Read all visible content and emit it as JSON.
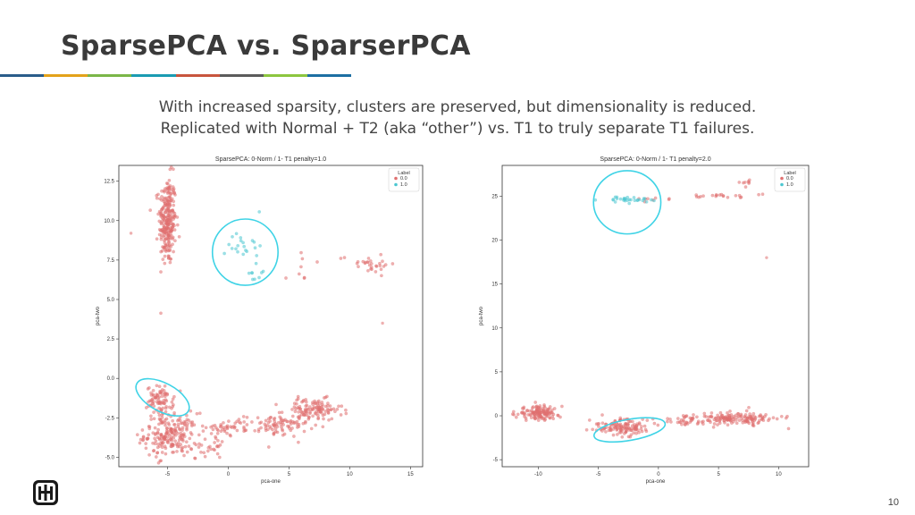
{
  "slide": {
    "title": "SparsePCA vs. SparserPCA",
    "subtitle_lines": [
      "With increased sparsity, clusters are preserved, but dimensionality is reduced.",
      "Replicated with Normal + T2 (aka “other”) vs. T1 to truly separate T1 failures."
    ],
    "page_number": "10",
    "logo": "sandia-thunderbird-logo",
    "bar_colors": [
      "#2a5c8a",
      "#e3a21a",
      "#7ab648",
      "#1a9bb2",
      "#c8553d",
      "#5b5b5b",
      "#8cc63f",
      "#1d6fa3"
    ]
  },
  "chart_data": [
    {
      "type": "scatter",
      "title": "SparsePCA: 0-Norm / 1- T1    penalty=1.0",
      "xlabel": "pca-one",
      "ylabel": "pca-two",
      "xlim": [
        -9,
        16
      ],
      "ylim": [
        -5.6,
        13.5
      ],
      "xticks": [
        -5,
        0,
        5,
        10,
        15
      ],
      "yticks": [
        -5.0,
        -2.5,
        0.0,
        2.5,
        5.0,
        7.5,
        10.0,
        12.5
      ],
      "grid": false,
      "legend": {
        "title": "Label",
        "position": "top-right",
        "entries": [
          {
            "label": "0.0",
            "color": "#e07070"
          },
          {
            "label": "1.0",
            "color": "#4cc7d1"
          }
        ]
      },
      "series": [
        {
          "name": "0.0",
          "color": "#e07070",
          "clusters": [
            {
              "cx": -5,
              "cy": 10,
              "sx": 0.35,
              "sy": 1.4,
              "n": 260
            },
            {
              "cx": -4.7,
              "cy": -3.6,
              "sx": 1.1,
              "sy": 0.7,
              "n": 220
            },
            {
              "cx": -5.6,
              "cy": -1.4,
              "sx": 0.55,
              "sy": 0.45,
              "n": 80
            },
            {
              "cx": -1.5,
              "cy": -4.3,
              "sx": 0.6,
              "sy": 0.4,
              "n": 25
            },
            {
              "cx": 0,
              "cy": -3.1,
              "sx": 0.9,
              "sy": 0.25,
              "n": 40
            },
            {
              "cx": 4,
              "cy": -3.0,
              "sx": 1.3,
              "sy": 0.35,
              "n": 90
            },
            {
              "cx": 7,
              "cy": -2.0,
              "sx": 1.2,
              "sy": 0.35,
              "n": 120
            },
            {
              "cx": 11.5,
              "cy": 7.3,
              "sx": 1.2,
              "sy": 0.3,
              "n": 30
            },
            {
              "cx": 6,
              "cy": 7.0,
              "sx": 0.6,
              "sy": 0.6,
              "n": 8
            }
          ],
          "points": [
            {
              "x": -8,
              "y": 9.2
            },
            {
              "x": 12.7,
              "y": 3.5
            }
          ]
        },
        {
          "name": "1.0",
          "color": "#4cc7d1",
          "clusters": [
            {
              "cx": 1.4,
              "cy": 8.5,
              "sx": 0.7,
              "sy": 0.6,
              "n": 22
            },
            {
              "cx": 2.1,
              "cy": 6.7,
              "sx": 0.35,
              "sy": 0.3,
              "n": 8
            }
          ],
          "points": []
        }
      ],
      "annotations": [
        {
          "shape": "ellipse",
          "cx": 1.4,
          "cy": 8.0,
          "rx": 2.7,
          "ry": 2.1,
          "color": "#3fd3e6"
        },
        {
          "shape": "ellipse",
          "cx": -5.4,
          "cy": -1.2,
          "rx": 2.4,
          "ry": 0.9,
          "rotate": 28,
          "color": "#3fd3e6"
        }
      ]
    },
    {
      "type": "scatter",
      "title": "SparsePCA: 0-Norm / 1- T1    penalty=2.0",
      "xlabel": "pca-one",
      "ylabel": "pca-two",
      "xlim": [
        -13,
        12.5
      ],
      "ylim": [
        -5.8,
        28.5
      ],
      "xticks": [
        -10,
        -5,
        0,
        5,
        10
      ],
      "yticks": [
        -5,
        0,
        5,
        10,
        15,
        20,
        25
      ],
      "grid": false,
      "legend": {
        "title": "Label",
        "position": "top-right",
        "entries": [
          {
            "label": "0.0",
            "color": "#e07070"
          },
          {
            "label": "1.0",
            "color": "#4cc7d1"
          }
        ]
      },
      "series": [
        {
          "name": "0.0",
          "color": "#e07070",
          "clusters": [
            {
              "cx": -10,
              "cy": 0.3,
              "sx": 0.9,
              "sy": 0.4,
              "n": 130
            },
            {
              "cx": -3,
              "cy": -1.3,
              "sx": 1.3,
              "sy": 0.45,
              "n": 130
            },
            {
              "cx": 2,
              "cy": -0.6,
              "sx": 0.9,
              "sy": 0.3,
              "n": 35
            },
            {
              "cx": 6.5,
              "cy": -0.3,
              "sx": 1.6,
              "sy": 0.35,
              "n": 150
            },
            {
              "cx": 5.5,
              "cy": 25,
              "sx": 1.2,
              "sy": 0.15,
              "n": 20
            },
            {
              "cx": 7.2,
              "cy": 26.5,
              "sx": 0.4,
              "sy": 0.2,
              "n": 8
            },
            {
              "cx": 0,
              "cy": 24.7,
              "sx": 0.8,
              "sy": 0.12,
              "n": 8
            }
          ],
          "points": [
            {
              "x": 9,
              "y": 18
            }
          ]
        },
        {
          "name": "1.0",
          "color": "#4cc7d1",
          "clusters": [
            {
              "cx": -2.3,
              "cy": 24.6,
              "sx": 1.1,
              "sy": 0.15,
              "n": 30
            }
          ],
          "points": []
        }
      ],
      "annotations": [
        {
          "shape": "ellipse",
          "cx": -2.6,
          "cy": 24.3,
          "rx": 2.8,
          "ry": 3.6,
          "color": "#3fd3e6"
        },
        {
          "shape": "ellipse",
          "cx": -2.4,
          "cy": -1.6,
          "rx": 3.0,
          "ry": 1.2,
          "rotate": -10,
          "color": "#3fd3e6"
        }
      ]
    }
  ]
}
